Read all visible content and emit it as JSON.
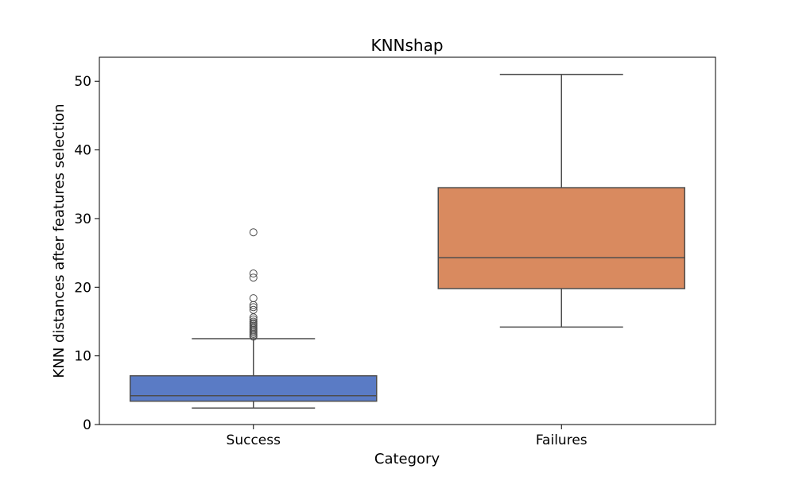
{
  "chart_data": {
    "type": "box",
    "title": "KNNshap",
    "xlabel": "Category",
    "ylabel": "KNN distances after features selection",
    "ylim": [
      0,
      53.5
    ],
    "yticks": [
      0,
      10,
      20,
      30,
      40,
      50
    ],
    "grid": false,
    "categories": [
      "Success",
      "Failures"
    ],
    "boxes": [
      {
        "category": "Success",
        "color": "#5a7bc5",
        "whisker_low": 2.4,
        "q1": 3.4,
        "median": 4.2,
        "q3": 7.1,
        "whisker_high": 12.5,
        "outliers": [
          12.8,
          13.0,
          13.2,
          13.4,
          13.6,
          13.8,
          14.0,
          14.2,
          14.4,
          14.6,
          14.8,
          15.0,
          15.3,
          15.6,
          16.7,
          17.1,
          17.4,
          18.4,
          21.4,
          22.0,
          28.0
        ]
      },
      {
        "category": "Failures",
        "color": "#d98a5f",
        "whisker_low": 14.2,
        "q1": 19.8,
        "median": 24.3,
        "q3": 34.5,
        "whisker_high": 51.0,
        "outliers": []
      }
    ]
  }
}
